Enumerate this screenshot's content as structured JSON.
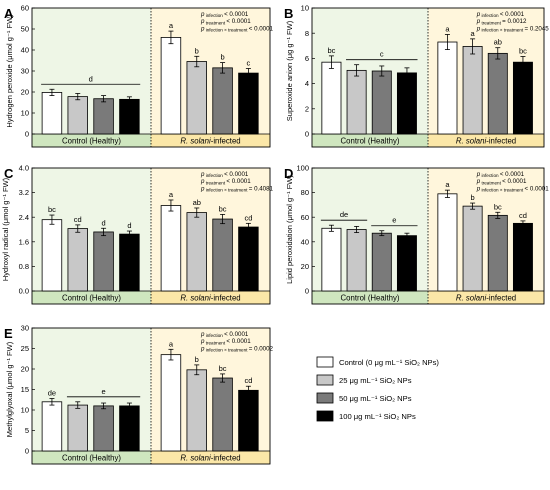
{
  "legend": {
    "items": [
      {
        "label": "Control (0 μg mL⁻¹ SiO₂ NPs)",
        "color": "#ffffff"
      },
      {
        "label": "25 μg mL⁻¹ SiO₂ NPs",
        "color": "#c8c8c8"
      },
      {
        "label": "50 μg mL⁻¹ SiO₂ NPs",
        "color": "#7a7a7a"
      },
      {
        "label": "100 μg mL⁻¹ SiO₂ NPs",
        "color": "#000000"
      }
    ]
  },
  "groups": {
    "healthy": {
      "label": "Control (Healthy)",
      "color": "#cfe6bf"
    },
    "infected": {
      "label_italic": "R. solani",
      "label_rest": "-infected",
      "color": "#fbe7a8"
    }
  },
  "chart_data": [
    {
      "type": "bar",
      "letter": "A",
      "ylabel": "Hydrogen peroxide (μmol g⁻¹ FW)",
      "ylim": [
        0,
        60
      ],
      "yticks": [
        "0",
        "10",
        "20",
        "30",
        "40",
        "50",
        "60"
      ],
      "series": [
        {
          "name": "Control (0 μg mL⁻¹ SiO₂ NPs)",
          "values": [
            19.8,
            46.0
          ],
          "errors": [
            1.5,
            3.0
          ]
        },
        {
          "name": "25 μg mL⁻¹ SiO₂ NPs",
          "values": [
            17.8,
            34.5
          ],
          "errors": [
            1.5,
            2.5
          ]
        },
        {
          "name": "50 μg mL⁻¹ SiO₂ NPs",
          "values": [
            16.8,
            31.5
          ],
          "errors": [
            1.5,
            2.5
          ]
        },
        {
          "name": "100 μg mL⁻¹ SiO₂ NPs",
          "values": [
            16.5,
            29.0
          ],
          "errors": [
            1.2,
            2.2
          ]
        }
      ],
      "healthy_bracket": "d",
      "infected_labels": [
        "a",
        "b",
        "b",
        "c"
      ],
      "pvalues": [
        "p infection < 0.0001",
        "p treatment < 0.0001",
        "p infection × treatment < 0.0001"
      ]
    },
    {
      "type": "bar",
      "letter": "B",
      "ylabel": "Superoxide anion (μg g⁻¹ FW)",
      "ylim": [
        0,
        10
      ],
      "yticks": [
        "0",
        "2",
        "4",
        "6",
        "8",
        "10"
      ],
      "series": [
        {
          "name": "Control (0 μg mL⁻¹ SiO₂ NPs)",
          "values": [
            5.7,
            7.3
          ],
          "errors": [
            0.5,
            0.6
          ]
        },
        {
          "name": "25 μg mL⁻¹ SiO₂ NPs",
          "values": [
            5.05,
            6.95
          ],
          "errors": [
            0.45,
            0.6
          ]
        },
        {
          "name": "50 μg mL⁻¹ SiO₂ NPs",
          "values": [
            5.0,
            6.4
          ],
          "errors": [
            0.4,
            0.45
          ]
        },
        {
          "name": "100 μg mL⁻¹ SiO₂ NPs",
          "values": [
            4.85,
            5.7
          ],
          "errors": [
            0.4,
            0.45
          ]
        }
      ],
      "healthy_labels": [
        "bc",
        "c",
        "c",
        "c"
      ],
      "healthy_bracket": "c",
      "infected_labels": [
        "a",
        "a",
        "ab",
        "bc"
      ],
      "pvalues": [
        "p infection < 0.0001",
        "p treatment = 0.0012",
        "p infection × treatment = 0.2045"
      ]
    },
    {
      "type": "bar",
      "letter": "C",
      "ylabel": "Hydroxyl radical (μmol g⁻¹ FW)",
      "ylim": [
        0,
        4.0
      ],
      "yticks": [
        "0.0",
        "0.8",
        "1.6",
        "2.4",
        "3.2",
        "4.0"
      ],
      "series": [
        {
          "name": "Control (0 μg mL⁻¹ SiO₂ NPs)",
          "values": [
            2.32,
            2.78
          ],
          "errors": [
            0.15,
            0.18
          ]
        },
        {
          "name": "25 μg mL⁻¹ SiO₂ NPs",
          "values": [
            2.03,
            2.55
          ],
          "errors": [
            0.12,
            0.15
          ]
        },
        {
          "name": "50 μg mL⁻¹ SiO₂ NPs",
          "values": [
            1.92,
            2.34
          ],
          "errors": [
            0.12,
            0.15
          ]
        },
        {
          "name": "100 μg mL⁻¹ SiO₂ NPs",
          "values": [
            1.85,
            2.08
          ],
          "errors": [
            0.1,
            0.12
          ]
        }
      ],
      "healthy_labels": [
        "bc",
        "cd",
        "d",
        "d"
      ],
      "infected_labels": [
        "a",
        "ab",
        "bc",
        "cd"
      ],
      "pvalues": [
        "p infection < 0.0001",
        "p treatment < 0.0001",
        "p infection × treatment = 0.4081"
      ]
    },
    {
      "type": "bar",
      "letter": "D",
      "ylabel": "Lipid peroxidation (μmol g⁻¹ FW)",
      "ylim": [
        0,
        100
      ],
      "yticks": [
        "0",
        "20",
        "40",
        "60",
        "80",
        "100"
      ],
      "series": [
        {
          "name": "Control (0 μg mL⁻¹ SiO₂ NPs)",
          "values": [
            51.0,
            79.0
          ],
          "errors": [
            2.5,
            3.0
          ]
        },
        {
          "name": "25 μg mL⁻¹ SiO₂ NPs",
          "values": [
            50.0,
            69.0
          ],
          "errors": [
            2.5,
            2.5
          ]
        },
        {
          "name": "50 μg mL⁻¹ SiO₂ NPs",
          "values": [
            47.0,
            61.5
          ],
          "errors": [
            2.0,
            2.5
          ]
        },
        {
          "name": "100 μg mL⁻¹ SiO₂ NPs",
          "values": [
            45.0,
            55.0
          ],
          "errors": [
            2.0,
            2.0
          ]
        }
      ],
      "healthy_brackets": [
        "de",
        "e"
      ],
      "infected_labels": [
        "a",
        "b",
        "bc",
        "cd"
      ],
      "pvalues": [
        "p infection < 0.0001",
        "p treatment < 0.0001",
        "p infection × treatment < 0.0001"
      ]
    },
    {
      "type": "bar",
      "letter": "E",
      "ylabel": "Methylglyoxal (μmol g⁻¹ FW)",
      "ylim": [
        0,
        30
      ],
      "yticks": [
        "0",
        "5",
        "10",
        "15",
        "20",
        "25",
        "30"
      ],
      "series": [
        {
          "name": "Control (0 μg mL⁻¹ SiO₂ NPs)",
          "values": [
            12.0,
            23.5
          ],
          "errors": [
            0.8,
            1.3
          ]
        },
        {
          "name": "25 μg mL⁻¹ SiO₂ NPs",
          "values": [
            11.2,
            19.8
          ],
          "errors": [
            0.8,
            1.2
          ]
        },
        {
          "name": "50 μg mL⁻¹ SiO₂ NPs",
          "values": [
            11.0,
            17.8
          ],
          "errors": [
            0.7,
            1.0
          ]
        },
        {
          "name": "100 μg mL⁻¹ SiO₂ NPs",
          "values": [
            11.0,
            14.8
          ],
          "errors": [
            0.7,
            1.0
          ]
        }
      ],
      "healthy_labels": [
        "de",
        "",
        "",
        ""
      ],
      "healthy_bracket": "e",
      "infected_labels": [
        "a",
        "b",
        "bc",
        "cd"
      ],
      "pvalues": [
        "p infection < 0.0001",
        "p treatment < 0.0001",
        "p infection × treatment = 0.0002"
      ]
    }
  ]
}
